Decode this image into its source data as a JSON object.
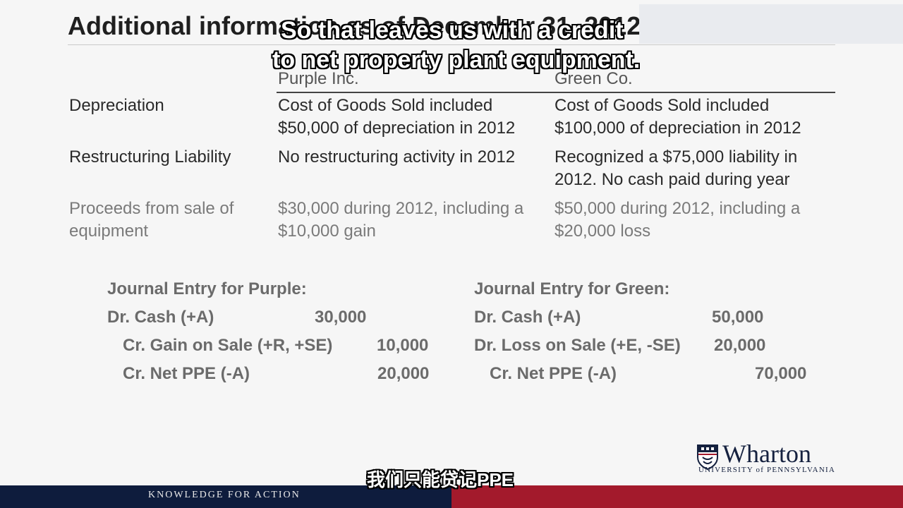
{
  "slide": {
    "title": "Additional information as of December 31, 2012",
    "columns": [
      "Purple Inc.",
      "Green Co."
    ],
    "rows": [
      {
        "label": [
          "Depreciation"
        ],
        "purple": [
          "Cost of Goods Sold included",
          "$50,000 of depreciation in 2012"
        ],
        "green": [
          "Cost of Goods Sold included",
          "$100,000 of depreciation in 2012"
        ]
      },
      {
        "label": [
          "Restructuring Liability"
        ],
        "purple": [
          "No restructuring activity in 2012"
        ],
        "green": [
          "Recognized a $75,000 liability in",
          "2012.  No cash paid during year"
        ]
      },
      {
        "label": [
          "Proceeds from sale of",
          "equipment"
        ],
        "purple": [
          "$30,000 during 2012, including a",
          "$10,000 gain"
        ],
        "green": [
          "$50,000 during 2012, including a",
          "$20,000 loss"
        ]
      }
    ],
    "journal": {
      "purple": {
        "heading": "Journal Entry for Purple:",
        "lines": [
          {
            "account": "Dr. Cash (+A)",
            "amount": "30,000"
          },
          {
            "account": "Cr. Gain on Sale (+R, +SE)",
            "amount": "10,000"
          },
          {
            "account": "Cr. Net PPE (-A)",
            "amount": "20,000"
          }
        ]
      },
      "green": {
        "heading": "Journal Entry for Green:",
        "lines": [
          {
            "account": "Dr. Cash (+A)",
            "amount": "50,000"
          },
          {
            "account": "Dr. Loss on Sale (+E, -SE)",
            "amount": "20,000"
          },
          {
            "account": "Cr. Net PPE (-A)",
            "amount": "70,000"
          }
        ]
      }
    },
    "logo": {
      "word": "Wharton",
      "subtitle": "UNIVERSITY of PENNSYLVANIA"
    },
    "footer": {
      "tagline": "KNOWLEDGE FOR ACTION"
    }
  },
  "subtitles": {
    "english": [
      "So that leaves us with a credit",
      "to net property plant equipment."
    ],
    "chinese": "我们只能贷记PPE"
  },
  "colors": {
    "navy": "#0e1c3d",
    "red": "#a31a2c",
    "text": "#2a2a2a",
    "journal": "#6b6b6b"
  }
}
